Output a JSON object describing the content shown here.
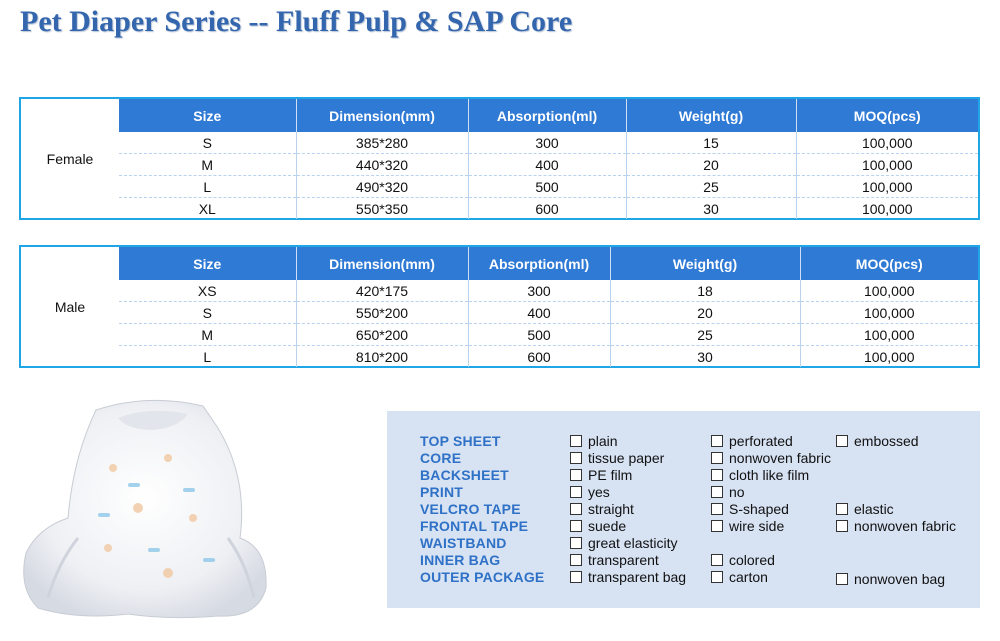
{
  "title": "Pet Diaper Series -- Fluff Pulp & SAP Core",
  "female_table": {
    "gender": "Female",
    "headers": [
      "Size",
      "Dimension(mm)",
      "Absorption(ml)",
      "Weight(g)",
      "MOQ(pcs)"
    ],
    "rows": [
      [
        "S",
        "385*280",
        "300",
        "15",
        "100,000"
      ],
      [
        "M",
        "440*320",
        "400",
        "20",
        "100,000"
      ],
      [
        "L",
        "490*320",
        "500",
        "25",
        "100,000"
      ],
      [
        "XL",
        "550*350",
        "600",
        "30",
        "100,000"
      ]
    ]
  },
  "male_table": {
    "gender": "Male",
    "headers": [
      "Size",
      "Dimension(mm)",
      "Absorption(ml)",
      "Weight(g)",
      "MOQ(pcs)"
    ],
    "rows": [
      [
        "XS",
        "420*175",
        "300",
        "18",
        "100,000"
      ],
      [
        "S",
        "550*200",
        "400",
        "20",
        "100,000"
      ],
      [
        "M",
        "650*200",
        "500",
        "25",
        "100,000"
      ],
      [
        "L",
        "810*200",
        "600",
        "30",
        "100,000"
      ]
    ]
  },
  "options": [
    {
      "label": "TOP SHEET",
      "choices": [
        "plain",
        "perforated",
        "embossed"
      ]
    },
    {
      "label": "CORE",
      "choices": [
        "tissue paper",
        "nonwoven fabric",
        ""
      ]
    },
    {
      "label": "BACKSHEET",
      "choices": [
        "PE film",
        "cloth like film",
        ""
      ]
    },
    {
      "label": "PRINT",
      "choices": [
        "yes",
        "no",
        ""
      ]
    },
    {
      "label": "VELCRO TAPE",
      "choices": [
        "straight",
        "S-shaped",
        "elastic"
      ]
    },
    {
      "label": "FRONTAL TAPE",
      "choices": [
        "suede",
        "wire side",
        "nonwoven fabric"
      ]
    },
    {
      "label": "WAISTBAND",
      "choices": [
        "great elasticity",
        "",
        ""
      ]
    },
    {
      "label": "INNER BAG",
      "choices": [
        "transparent",
        "colored",
        ""
      ]
    },
    {
      "label": "OUTER PACKAGE",
      "choices": [
        "transparent bag",
        "carton",
        "nonwoven bag"
      ]
    }
  ],
  "colors": {
    "title": "#3466ae",
    "header_bg": "#2f7ad4",
    "frame": "#1ea6e6",
    "option_label": "#2e71c6",
    "option_bg": "#d7e2f3"
  }
}
